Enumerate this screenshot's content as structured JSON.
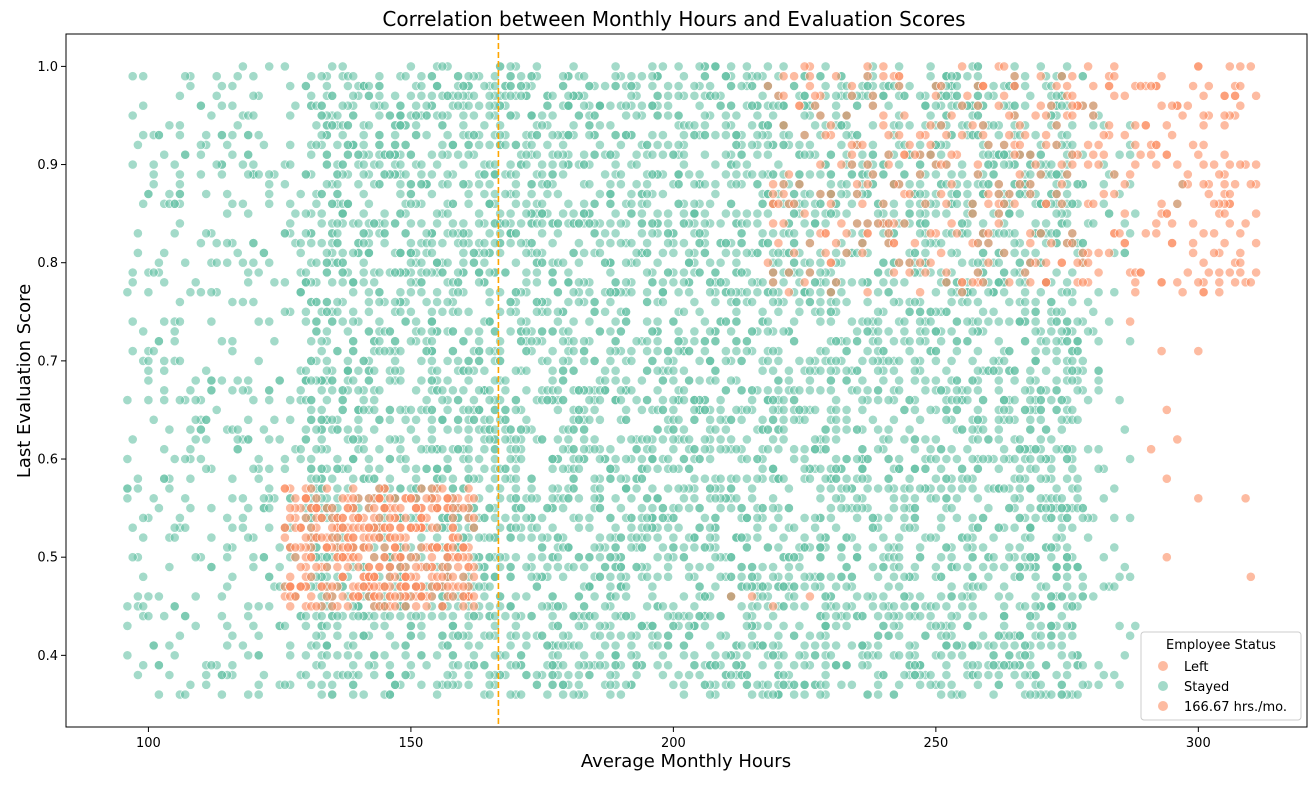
{
  "chart_data": {
    "type": "scatter",
    "title": "Correlation between Monthly Hours and Evaluation Scores",
    "xlabel": "Average Monthly Hours",
    "ylabel": "Last Evaluation Score",
    "xlim": [
      84.3,
      320.7
    ],
    "ylim": [
      0.327,
      1.033
    ],
    "xticks": [
      100,
      150,
      200,
      250,
      300
    ],
    "yticks": [
      0.4,
      0.5,
      0.6,
      0.7,
      0.8,
      0.9,
      1.0
    ],
    "xtick_labels": [
      "100",
      "150",
      "200",
      "250",
      "300"
    ],
    "ytick_labels": [
      "0.4",
      "0.5",
      "0.6",
      "0.7",
      "0.8",
      "0.9",
      "1.0"
    ],
    "grid": false,
    "reference_line": {
      "orientation": "vertical",
      "x": 166.67,
      "color": "#ffa500",
      "style": "dashed"
    },
    "legend": {
      "title": "Employee Status",
      "placement": "lower-right",
      "entries": [
        "Left",
        "Stayed",
        "166.67 hrs./mo."
      ]
    },
    "series": [
      {
        "name": "Stayed",
        "color": "#66c2a5",
        "clusters": [
          {
            "x": [
              96,
              130
            ],
            "y": [
              0.36,
              1.0
            ],
            "n": 420
          },
          {
            "x": [
              130,
              278
            ],
            "y": [
              0.36,
              1.0
            ],
            "n": 5200
          },
          {
            "x": [
              278,
              288
            ],
            "y": [
              0.36,
              0.98
            ],
            "n": 80
          }
        ],
        "points": [
          {
            "x": 297,
            "y": 0.88
          },
          {
            "x": 296,
            "y": 0.86
          }
        ]
      },
      {
        "name": "Left",
        "color": "#fc8d62",
        "clusters": [
          {
            "x": [
              126,
              162
            ],
            "y": [
              0.45,
              0.57
            ],
            "n": 420
          },
          {
            "x": [
              218,
              276
            ],
            "y": [
              0.77,
              1.0
            ],
            "n": 260
          },
          {
            "x": [
              276,
              311
            ],
            "y": [
              0.77,
              1.0
            ],
            "n": 190
          }
        ],
        "points": [
          {
            "x": 300,
            "y": 1.0
          },
          {
            "x": 300,
            "y": 0.71
          },
          {
            "x": 293,
            "y": 0.71
          },
          {
            "x": 294,
            "y": 0.65
          },
          {
            "x": 296,
            "y": 0.62
          },
          {
            "x": 291,
            "y": 0.61
          },
          {
            "x": 294,
            "y": 0.58
          },
          {
            "x": 300,
            "y": 0.56
          },
          {
            "x": 309,
            "y": 0.56
          },
          {
            "x": 294,
            "y": 0.5
          },
          {
            "x": 310,
            "y": 0.48
          },
          {
            "x": 219,
            "y": 0.45
          },
          {
            "x": 215,
            "y": 0.46
          },
          {
            "x": 226,
            "y": 0.46
          },
          {
            "x": 211,
            "y": 0.46
          },
          {
            "x": 287,
            "y": 0.74
          }
        ]
      }
    ]
  }
}
